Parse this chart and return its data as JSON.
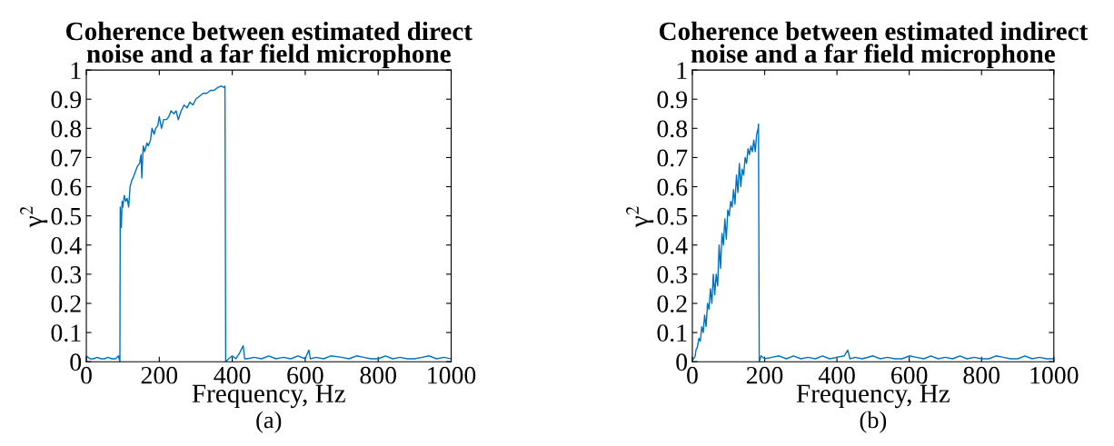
{
  "chart_data": [
    {
      "type": "line",
      "title": "Coherence between estimated direct\nnoise and a far field microphone",
      "xlabel": "Frequency, Hz",
      "ylabel": "γ$^{2}$",
      "annotations": [
        "(a)"
      ],
      "series": [
        {
          "color": "#0072bd",
          "x": [
            0,
            10,
            20,
            30,
            40,
            50,
            60,
            70,
            80,
            88,
            92,
            93,
            96,
            98,
            100,
            104,
            108,
            112,
            116,
            120,
            124,
            128,
            134,
            140,
            146,
            150,
            152,
            156,
            160,
            166,
            170,
            176,
            180,
            186,
            190,
            196,
            200,
            206,
            212,
            220,
            226,
            232,
            240,
            246,
            252,
            260,
            268,
            276,
            284,
            292,
            300,
            310,
            320,
            330,
            340,
            350,
            360,
            370,
            378,
            380,
            382,
            390,
            400,
            410,
            420,
            430,
            434,
            440,
            460,
            480,
            500,
            520,
            540,
            560,
            580,
            600,
            610,
            614,
            630,
            650,
            670,
            700,
            720,
            740,
            760,
            780,
            800,
            820,
            840,
            860,
            880,
            900,
            920,
            940,
            960,
            980,
            1000
          ],
          "values": [
            0.02,
            0.01,
            0.01,
            0.015,
            0.01,
            0.01,
            0.015,
            0.01,
            0.01,
            0.02,
            0.0,
            0.53,
            0.46,
            0.55,
            0.53,
            0.57,
            0.55,
            0.56,
            0.53,
            0.6,
            0.62,
            0.63,
            0.65,
            0.67,
            0.68,
            0.71,
            0.63,
            0.74,
            0.72,
            0.75,
            0.74,
            0.76,
            0.8,
            0.78,
            0.8,
            0.81,
            0.84,
            0.8,
            0.83,
            0.83,
            0.84,
            0.86,
            0.85,
            0.86,
            0.83,
            0.86,
            0.88,
            0.87,
            0.89,
            0.88,
            0.9,
            0.91,
            0.92,
            0.92,
            0.93,
            0.93,
            0.94,
            0.945,
            0.94,
            0.945,
            0.0,
            0.01,
            0.02,
            0.01,
            0.03,
            0.055,
            0.01,
            0.01,
            0.015,
            0.01,
            0.02,
            0.01,
            0.015,
            0.01,
            0.02,
            0.01,
            0.04,
            0.01,
            0.015,
            0.01,
            0.02,
            0.015,
            0.01,
            0.02,
            0.015,
            0.01,
            0.01,
            0.02,
            0.01,
            0.015,
            0.01,
            0.01,
            0.015,
            0.02,
            0.01,
            0.015,
            0.01
          ]
        }
      ],
      "xlim": [
        0,
        1000
      ],
      "xticks": [
        0,
        200,
        400,
        600,
        800,
        1000
      ],
      "ylim": [
        0,
        1
      ],
      "yticks": [
        0,
        0.1,
        0.2,
        0.3,
        0.4,
        0.5,
        0.6,
        0.7,
        0.8,
        0.9,
        1
      ],
      "grid": false
    },
    {
      "type": "line",
      "title": "Coherence between estimated indirect\nnoise and a far field microphone",
      "xlabel": "Frequency, Hz",
      "ylabel": "γ$^{2}$",
      "annotations": [
        "(b)"
      ],
      "series": [
        {
          "color": "#0072bd",
          "x": [
            0,
            4,
            8,
            10,
            14,
            18,
            22,
            26,
            30,
            34,
            38,
            42,
            46,
            50,
            54,
            58,
            62,
            66,
            70,
            74,
            78,
            82,
            86,
            90,
            94,
            98,
            102,
            106,
            110,
            114,
            118,
            122,
            126,
            130,
            134,
            138,
            142,
            146,
            150,
            154,
            158,
            162,
            166,
            170,
            174,
            178,
            182,
            183,
            185,
            190,
            200,
            220,
            240,
            260,
            280,
            300,
            320,
            340,
            360,
            380,
            400,
            420,
            430,
            436,
            450,
            470,
            500,
            520,
            540,
            560,
            580,
            600,
            620,
            640,
            660,
            680,
            700,
            720,
            740,
            760,
            780,
            800,
            820,
            840,
            860,
            880,
            900,
            920,
            940,
            960,
            980,
            1000
          ],
          "values": [
            0.01,
            0.01,
            0.02,
            0.04,
            0.05,
            0.08,
            0.07,
            0.12,
            0.1,
            0.16,
            0.12,
            0.2,
            0.18,
            0.25,
            0.2,
            0.3,
            0.23,
            0.3,
            0.26,
            0.4,
            0.32,
            0.44,
            0.4,
            0.49,
            0.42,
            0.52,
            0.5,
            0.55,
            0.53,
            0.59,
            0.54,
            0.64,
            0.58,
            0.68,
            0.6,
            0.66,
            0.64,
            0.7,
            0.68,
            0.73,
            0.71,
            0.74,
            0.72,
            0.76,
            0.72,
            0.78,
            0.8,
            0.815,
            0.0,
            0.02,
            0.01,
            0.015,
            0.02,
            0.01,
            0.02,
            0.01,
            0.015,
            0.01,
            0.02,
            0.01,
            0.015,
            0.02,
            0.04,
            0.01,
            0.015,
            0.01,
            0.02,
            0.01,
            0.015,
            0.01,
            0.01,
            0.02,
            0.015,
            0.01,
            0.02,
            0.01,
            0.015,
            0.01,
            0.02,
            0.01,
            0.015,
            0.01,
            0.01,
            0.02,
            0.015,
            0.01,
            0.01,
            0.02,
            0.01,
            0.015,
            0.01,
            0.01
          ]
        }
      ],
      "xlim": [
        0,
        1000
      ],
      "xticks": [
        0,
        200,
        400,
        600,
        800,
        1000
      ],
      "ylim": [
        0,
        1
      ],
      "yticks": [
        0,
        0.1,
        0.2,
        0.3,
        0.4,
        0.5,
        0.6,
        0.7,
        0.8,
        0.9,
        1
      ],
      "grid": false
    }
  ]
}
